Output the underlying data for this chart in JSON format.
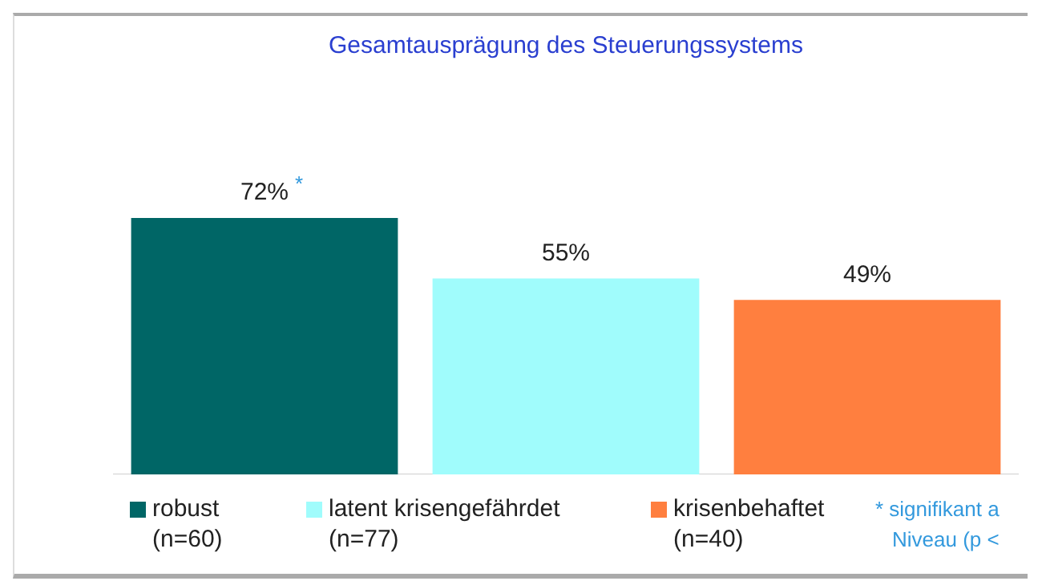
{
  "chart_data": {
    "type": "bar",
    "title": "Gesamtausprägung des Steuerungssystems",
    "categories": [
      null
    ],
    "series": [
      {
        "name": "robust\n(n=60)",
        "color": "#006666",
        "values": [
          72
        ],
        "value_labels": [
          "72%"
        ]
      },
      {
        "name": "latent krisengefährdet\n(n=77)",
        "color": "#a0fcfc",
        "values": [
          55
        ],
        "value_labels": [
          "55%"
        ]
      },
      {
        "name": "krisenbehaftet\n(n=40)",
        "color": "#ff7f3f",
        "values": [
          49
        ],
        "value_labels": [
          "49%"
        ]
      }
    ],
    "annotations": [
      {
        "text": "*",
        "y": 72
      },
      "* signifikant a\nNiveau (p <"
    ],
    "legend": "bottom",
    "grid": false
  }
}
